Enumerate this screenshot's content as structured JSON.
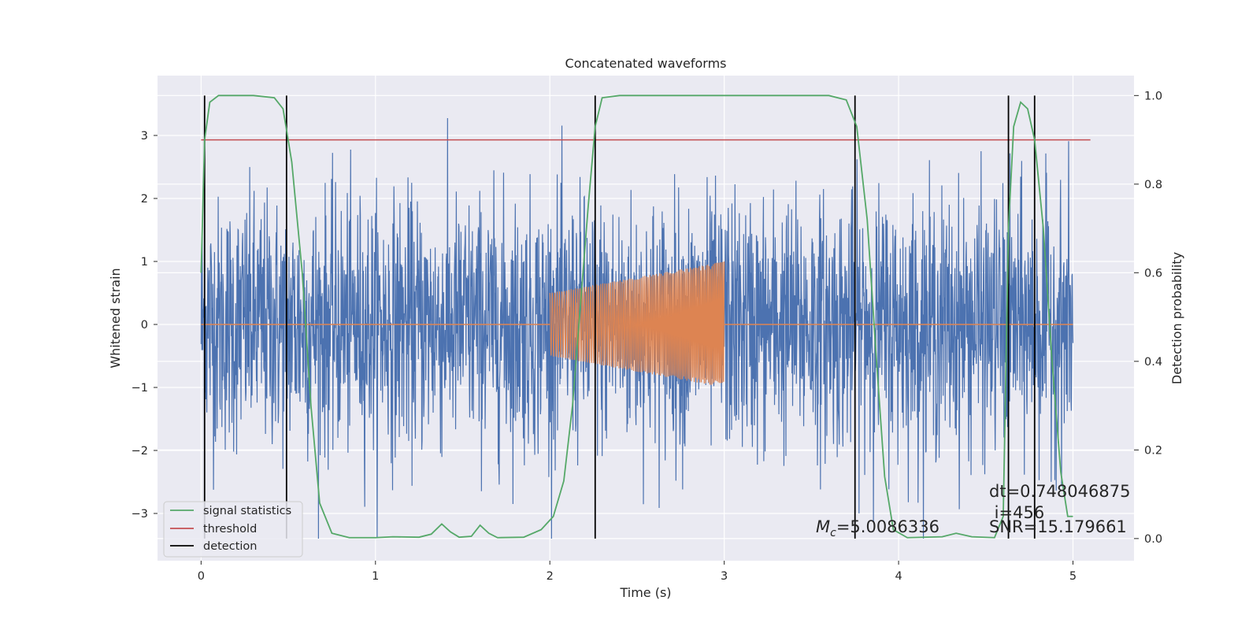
{
  "chart_data": {
    "type": "line",
    "title": "Concatenated waveforms",
    "xlabel": "Time (s)",
    "ylabel": "Whitened strain",
    "y2label": "Detection probability",
    "xlim": [
      -0.25,
      5.35
    ],
    "ylim": [
      -3.75,
      3.95
    ],
    "y2lim": [
      -0.05,
      1.045
    ],
    "xticks": [
      0,
      1,
      2,
      3,
      4,
      5
    ],
    "yticks": [
      -3,
      -2,
      -1,
      0,
      1,
      2,
      3
    ],
    "y2ticks": [
      0.0,
      0.2,
      0.4,
      0.6,
      0.8,
      1.0
    ],
    "grid": true,
    "legend_position": "lower-left",
    "colors": {
      "background": "#EAEAF2",
      "grid": "#ffffff",
      "noise": "#4C72B0",
      "injected": "#DD8452",
      "signal_statistics": "#55A868",
      "threshold": "#C44E52",
      "detection": "#000000"
    },
    "series": [
      {
        "name": "signal statistics",
        "axis": "right",
        "points": [
          [
            0.0,
            0.6
          ],
          [
            0.02,
            0.9
          ],
          [
            0.05,
            0.985
          ],
          [
            0.1,
            1.0
          ],
          [
            0.3,
            1.0
          ],
          [
            0.42,
            0.995
          ],
          [
            0.47,
            0.97
          ],
          [
            0.52,
            0.85
          ],
          [
            0.58,
            0.6
          ],
          [
            0.63,
            0.3
          ],
          [
            0.68,
            0.08
          ],
          [
            0.75,
            0.012
          ],
          [
            0.85,
            0.002
          ],
          [
            1.0,
            0.002
          ],
          [
            1.1,
            0.004
          ],
          [
            1.25,
            0.003
          ],
          [
            1.32,
            0.01
          ],
          [
            1.38,
            0.033
          ],
          [
            1.43,
            0.015
          ],
          [
            1.48,
            0.003
          ],
          [
            1.55,
            0.005
          ],
          [
            1.6,
            0.03
          ],
          [
            1.65,
            0.012
          ],
          [
            1.7,
            0.002
          ],
          [
            1.85,
            0.003
          ],
          [
            1.95,
            0.02
          ],
          [
            2.02,
            0.05
          ],
          [
            2.08,
            0.13
          ],
          [
            2.13,
            0.3
          ],
          [
            2.18,
            0.55
          ],
          [
            2.22,
            0.75
          ],
          [
            2.26,
            0.93
          ],
          [
            2.3,
            0.995
          ],
          [
            2.4,
            1.0
          ],
          [
            3.6,
            1.0
          ],
          [
            3.7,
            0.99
          ],
          [
            3.76,
            0.93
          ],
          [
            3.82,
            0.72
          ],
          [
            3.87,
            0.42
          ],
          [
            3.92,
            0.14
          ],
          [
            3.97,
            0.02
          ],
          [
            4.05,
            0.002
          ],
          [
            4.25,
            0.004
          ],
          [
            4.33,
            0.012
          ],
          [
            4.42,
            0.004
          ],
          [
            4.55,
            0.002
          ],
          [
            4.6,
            0.05
          ],
          [
            4.63,
            0.7
          ],
          [
            4.66,
            0.93
          ],
          [
            4.7,
            0.985
          ],
          [
            4.74,
            0.97
          ],
          [
            4.78,
            0.9
          ],
          [
            4.83,
            0.7
          ],
          [
            4.88,
            0.4
          ],
          [
            4.93,
            0.15
          ],
          [
            4.97,
            0.05
          ],
          [
            5.0,
            0.05
          ]
        ]
      },
      {
        "name": "threshold",
        "axis": "right",
        "value": 0.9,
        "x_range": [
          0.0,
          5.1
        ]
      },
      {
        "name": "detection",
        "axis": "right",
        "x_values": [
          0.02,
          0.49,
          2.26,
          3.75,
          4.63,
          4.78
        ],
        "y_range": [
          0.0,
          1.0
        ]
      },
      {
        "axis": "left",
        "description": "whitened noise",
        "x_range": [
          0.0,
          5.0
        ],
        "typical_amplitude": 1.0,
        "peak_range": [
          -3.4,
          3.6
        ]
      },
      {
        "axis": "left",
        "description": "injected chirp",
        "x_range": [
          2.0,
          3.0
        ],
        "amplitude_start": 0.5,
        "amplitude_end": 1.0
      }
    ],
    "legend": [
      "signal statistics",
      "threshold",
      "detection"
    ],
    "annotations": {
      "mc_label": "=5.0086336",
      "mc_symbol_main": "M",
      "mc_symbol_sub": "c",
      "dt": "dt=0.748046875",
      "i": " i=456",
      "snr": "SNR=15.179661"
    }
  }
}
